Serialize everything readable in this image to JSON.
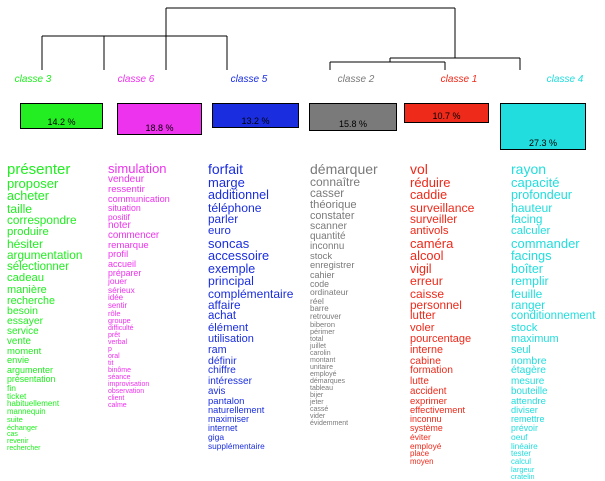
{
  "classes": [
    {
      "label": "classe 3",
      "percent": "14.2 %",
      "color": "#22ee22",
      "words": [
        "présenter",
        "proposer",
        "acheter",
        "taille",
        "correspondre",
        "produire",
        "hésiter",
        "argumentation",
        "sélectionner",
        "cadeau",
        "manière",
        "recherche",
        "besoin",
        "essayer",
        "service",
        "vente",
        "moment",
        "envie",
        "argumenter",
        "présentation",
        "fin",
        "ticket",
        "habituellement",
        "mannequin",
        "suite",
        "échanger",
        "cas",
        "revenir",
        "rechercher"
      ]
    },
    {
      "label": "classe 6",
      "percent": "18.8 %",
      "color": "#ee33ee",
      "words": [
        "simulation",
        "vendeur",
        "ressentir",
        "communication",
        "situation",
        "positif",
        "noter",
        "commencer",
        "remarque",
        "profil",
        "accueil",
        "préparer",
        "jouer",
        "sérieux",
        "idée",
        "sentir",
        "rôle",
        "groupe",
        "difficulté",
        "prêt",
        "verbal",
        "p",
        "oral",
        "tit",
        "binôme",
        "séance",
        "improvisation",
        "observation",
        "client",
        "calme"
      ]
    },
    {
      "label": "classe 5",
      "percent": "13.2 %",
      "color": "#1a2ee0",
      "words": [
        "forfait",
        "marge",
        "additionnel",
        "téléphone",
        "parler",
        "euro",
        "soncas",
        "accessoire",
        "exemple",
        "principal",
        "complémentaire",
        "affaire",
        "achat",
        "élément",
        "utilisation",
        "ram",
        "définir",
        "chiffre",
        "intéresser",
        "avis",
        "pantalon",
        "naturellement",
        "maximiser",
        "internet",
        "giga",
        "supplémentaire"
      ]
    },
    {
      "label": "classe 2",
      "percent": "15.8 %",
      "color": "#7a7a7a",
      "words": [
        "démarquer",
        "connaître",
        "casser",
        "théorique",
        "constater",
        "scanner",
        "quantité",
        "inconnu",
        "stock",
        "enregistrer",
        "cahier",
        "code",
        "ordinateur",
        "réel",
        "barre",
        "retrouver",
        "biberon",
        "périmer",
        "total",
        "juillet",
        "carolin",
        "montant",
        "unitaire",
        "employé",
        "démarques",
        "tableau",
        "bijer",
        "jeter",
        "cassé",
        "vider",
        "évidemment"
      ]
    },
    {
      "label": "classe 1",
      "percent": "10.7 %",
      "color": "#ee2a1a",
      "words": [
        "vol",
        "réduire",
        "caddie",
        "surveillance",
        "surveiller",
        "antivols",
        "caméra",
        "alcool",
        "vigil",
        "erreur",
        "caisse",
        "personnel",
        "lutter",
        "voler",
        "pourcentage",
        "interne",
        "cabine",
        "formation",
        "lutte",
        "accident",
        "exprimer",
        "effectivement",
        "inconnu",
        "système",
        "éviter",
        "employé",
        "place",
        "moyen"
      ]
    },
    {
      "label": "classe 4",
      "percent": "27.3 %",
      "color": "#22dddd",
      "words": [
        "rayon",
        "capacité",
        "profondeur",
        "hauteur",
        "facing",
        "calculer",
        "commander",
        "facings",
        "boîter",
        "remplir",
        "feuille",
        "ranger",
        "conditionnement",
        "stock",
        "maximum",
        "seul",
        "nombre",
        "étagère",
        "mesure",
        "bouteille",
        "attendre",
        "diviser",
        "remettre",
        "prévoir",
        "oeuf",
        "linéaire",
        "tester",
        "calcul",
        "largeur",
        "cratelin"
      ]
    }
  ]
}
